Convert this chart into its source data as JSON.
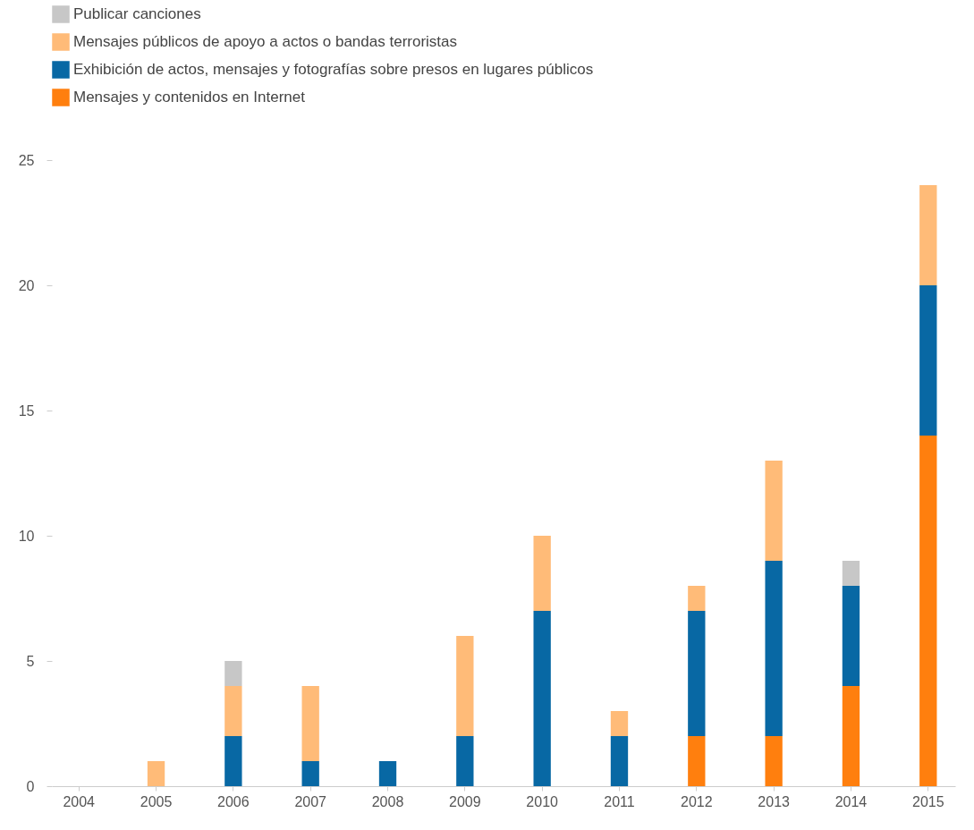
{
  "chart_data": {
    "type": "bar",
    "stacked": true,
    "categories": [
      "2004",
      "2005",
      "2006",
      "2007",
      "2008",
      "2009",
      "2010",
      "2011",
      "2012",
      "2013",
      "2014",
      "2015"
    ],
    "series": [
      {
        "name": "Mensajes y contenidos en Internet",
        "color": "#ff7f0e",
        "values": [
          null,
          null,
          null,
          null,
          null,
          null,
          null,
          null,
          2,
          2,
          4,
          14
        ]
      },
      {
        "name": "Exhibición de actos, mensajes y fotografías sobre presos en lugares públicos",
        "color": "#0868a4",
        "values": [
          null,
          null,
          2,
          1,
          1,
          2,
          7,
          2,
          5,
          7,
          4,
          6
        ]
      },
      {
        "name": "Mensajes públicos de apoyo a actos o bandas terroristas",
        "color": "#ffbb78",
        "values": [
          null,
          1,
          2,
          3,
          null,
          4,
          3,
          1,
          1,
          4,
          null,
          4
        ]
      },
      {
        "name": "Publicar canciones",
        "color": "#c7c7c7",
        "values": [
          null,
          null,
          1,
          null,
          null,
          null,
          null,
          null,
          null,
          null,
          1,
          null
        ]
      }
    ],
    "ylim": [
      0,
      25
    ],
    "yticks": [
      0,
      5,
      10,
      15,
      20,
      25
    ],
    "grid": false,
    "legend": "top left"
  }
}
